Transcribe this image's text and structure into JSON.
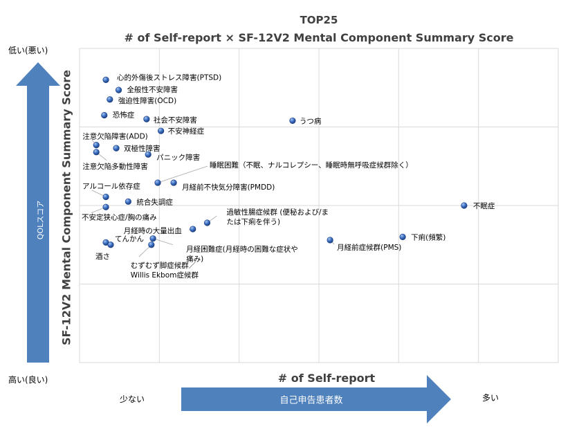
{
  "chart_data": {
    "type": "scatter",
    "title": "TOP25",
    "subtitle": "# of Self-report  ×  SF-12V2 Mental Component Summary Score",
    "xlabel": "# of Self-report",
    "ylabel": "SF-12V2 Mental Component Summary Score",
    "grid": true,
    "xlim": [
      0,
      6
    ],
    "ylim": [
      0,
      4
    ],
    "points": [
      {
        "label": "心的外傷後ストレス障害(PTSD)",
        "x": 0.33,
        "y": 3.6
      },
      {
        "label": "全般性不安障害",
        "x": 0.49,
        "y": 3.47
      },
      {
        "label": "強迫性障害(OCD)",
        "x": 0.38,
        "y": 3.35
      },
      {
        "label": "恐怖症",
        "x": 0.31,
        "y": 3.15
      },
      {
        "label": "社会不安障害",
        "x": 0.84,
        "y": 3.1
      },
      {
        "label": "うつ病",
        "x": 2.67,
        "y": 3.08
      },
      {
        "label": "不安神経症",
        "x": 1.02,
        "y": 2.95
      },
      {
        "label": "注意欠陥障害(ADD)",
        "x": 0.21,
        "y": 2.77
      },
      {
        "label": "双極性障害",
        "x": 0.46,
        "y": 2.73
      },
      {
        "label": "注意欠陥多動性障害",
        "x": 0.21,
        "y": 2.68
      },
      {
        "label": "パニック障害",
        "x": 0.86,
        "y": 2.65
      },
      {
        "label": "睡眠困難（不眠、ナルコレプシー、睡眠時無呼吸症候群除く）",
        "x": 0.98,
        "y": 2.29
      },
      {
        "label": "月経前不快気分障害(PMDD)",
        "x": 1.18,
        "y": 2.29
      },
      {
        "label": "アルコール依存症",
        "x": 0.33,
        "y": 2.11
      },
      {
        "label": "統合失調症",
        "x": 0.61,
        "y": 2.05
      },
      {
        "label": "不眠症",
        "x": 4.82,
        "y": 2.0
      },
      {
        "label": "不安定狭心症/胸の痛み",
        "x": 0.33,
        "y": 1.98
      },
      {
        "label": "過敏性腸症候群 (便秘および/または下痢を伴う)",
        "x": 1.6,
        "y": 1.78
      },
      {
        "label": "月経時の大量出血",
        "x": 1.42,
        "y": 1.7
      },
      {
        "label": "下痢(頻繁)",
        "x": 4.05,
        "y": 1.6
      },
      {
        "label": "月経困難症(月経時の困難な症状や痛み)",
        "x": 0.92,
        "y": 1.58
      },
      {
        "label": "月経前症候群(PMS)",
        "x": 3.14,
        "y": 1.56
      },
      {
        "label": "てんかん",
        "x": 0.33,
        "y": 1.53
      },
      {
        "label": "酒さ",
        "x": 0.39,
        "y": 1.5
      },
      {
        "label": "むずむず脚症候群／Willis Ekbom症候群",
        "x": 0.9,
        "y": 1.5
      }
    ]
  },
  "annotations": {
    "y_top": "低い(悪い)",
    "y_bottom": "高い(良い)",
    "qol_arrow": "QOLスコア",
    "x_left": "少ない",
    "x_right": "多い",
    "x_arrow": "自己申告患者数"
  },
  "colors": {
    "arrow": "#4f81bd",
    "point": "#2f5fa8",
    "grid": "#d9d9d9",
    "title": "#404040"
  }
}
